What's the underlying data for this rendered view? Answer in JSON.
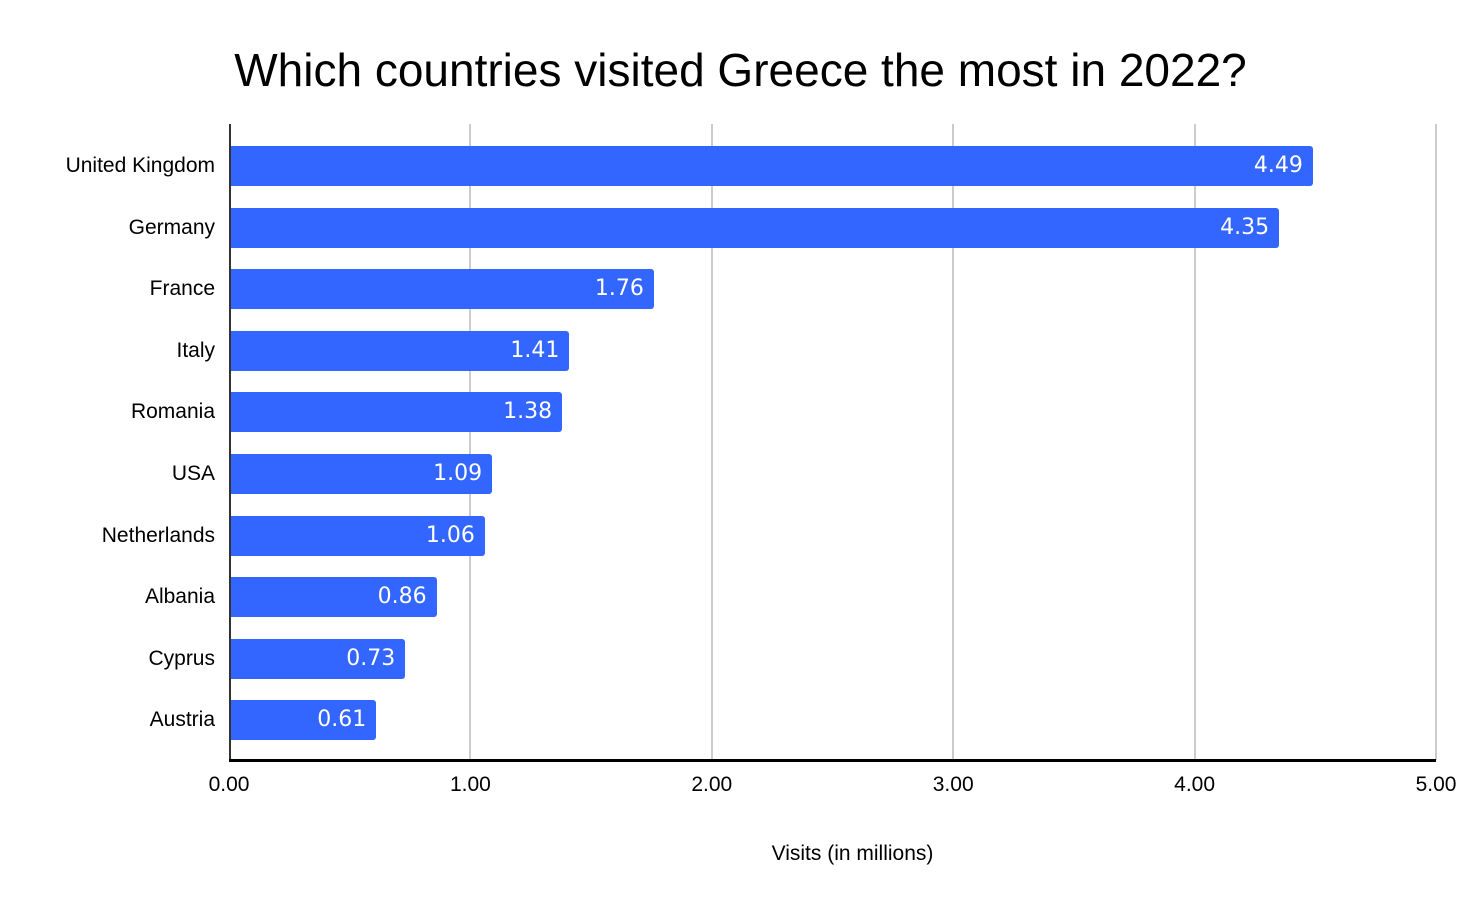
{
  "chart_data": {
    "type": "bar",
    "orientation": "horizontal",
    "title": "Which countries visited Greece the most in 2022?",
    "xlabel": "Visits (in millions)",
    "ylabel": "",
    "xlim": [
      0,
      5
    ],
    "grid": true,
    "legend": null,
    "bar_color": "#3366ff",
    "x_ticks": [
      "0.00",
      "1.00",
      "2.00",
      "3.00",
      "4.00",
      "5.00"
    ],
    "categories": [
      "United Kingdom",
      "Germany",
      "France",
      "Italy",
      "Romania",
      "USA",
      "Netherlands",
      "Albania",
      "Cyprus",
      "Austria"
    ],
    "values": [
      4.49,
      4.35,
      1.76,
      1.41,
      1.38,
      1.09,
      1.06,
      0.86,
      0.73,
      0.61
    ],
    "value_labels": [
      "4.49",
      "4.35",
      "1.76",
      "1.41",
      "1.38",
      "1.09",
      "1.06",
      "0.86",
      "0.73",
      "0.61"
    ]
  }
}
